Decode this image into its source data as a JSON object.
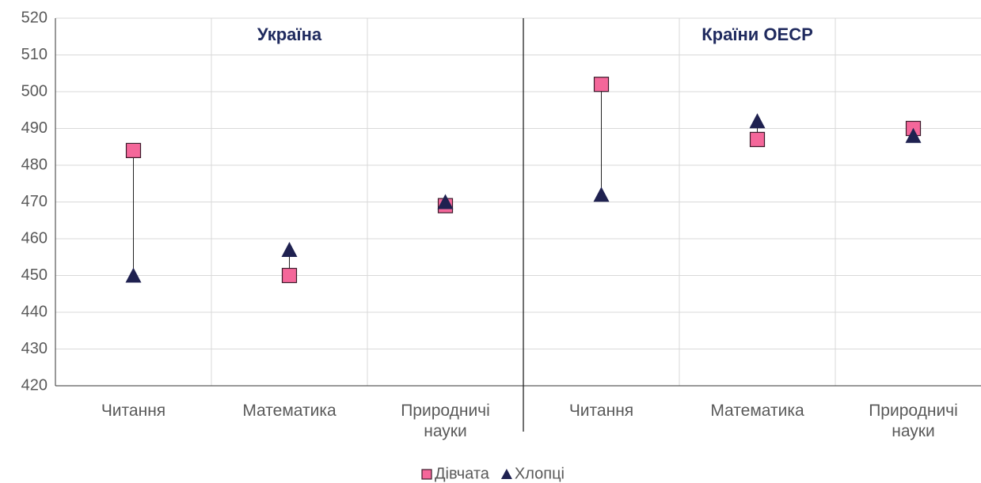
{
  "chart_data": {
    "type": "dot",
    "groups": [
      "Україна",
      "Країни ОЕСР"
    ],
    "categories": [
      "Читання",
      "Математика",
      "Природничі науки",
      "Читання",
      "Математика",
      "Природничі науки"
    ],
    "series": [
      {
        "name": "Дівчата",
        "color": "#f4679a",
        "marker": "square",
        "values": [
          484,
          450,
          469,
          502,
          487,
          490
        ]
      },
      {
        "name": "Хлопці",
        "color": "#1f2150",
        "marker": "triangle",
        "values": [
          450,
          457,
          470,
          472,
          492,
          488
        ]
      }
    ],
    "ylim": [
      420,
      520
    ],
    "yticks": [
      420,
      430,
      440,
      450,
      460,
      470,
      480,
      490,
      500,
      510,
      520
    ],
    "grid": true,
    "legend": "bottom"
  }
}
